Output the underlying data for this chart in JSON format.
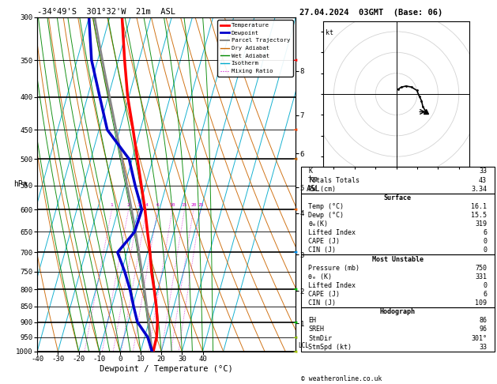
{
  "title_left": "-34°49'S  301°32'W  21m  ASL",
  "title_right": "27.04.2024  03GMT  (Base: 06)",
  "xlabel": "Dewpoint / Temperature (°C)",
  "pressure_levels": [
    300,
    350,
    400,
    450,
    500,
    550,
    600,
    650,
    700,
    750,
    800,
    850,
    900,
    950,
    1000
  ],
  "temp_profile_p": [
    1000,
    950,
    900,
    850,
    800,
    750,
    700,
    650,
    600,
    550,
    500,
    450,
    400,
    350,
    300
  ],
  "temp_profile_t": [
    16.1,
    15.8,
    14.2,
    11.5,
    8.2,
    4.5,
    1.2,
    -2.8,
    -7.0,
    -12.0,
    -17.5,
    -23.5,
    -30.5,
    -37.0,
    -44.0
  ],
  "dewp_profile_p": [
    1000,
    950,
    900,
    850,
    800,
    750,
    700,
    650,
    600,
    550,
    500,
    450,
    400,
    350,
    300
  ],
  "dewp_profile_t": [
    15.5,
    11.5,
    4.5,
    0.5,
    -3.5,
    -8.5,
    -14.5,
    -9.0,
    -8.5,
    -15.0,
    -21.5,
    -36.0,
    -44.0,
    -53.0,
    -60.0
  ],
  "color_temp": "#ff0000",
  "color_dewp": "#0000cc",
  "color_parcel": "#888888",
  "color_dry_adiabat": "#cc6600",
  "color_wet_adiabat": "#008800",
  "color_isotherm": "#00aacc",
  "color_mixing": "#cc00cc",
  "color_background": "#ffffff",
  "mixing_ratios": [
    1,
    2,
    3,
    4,
    6,
    10,
    15,
    20,
    25
  ],
  "skew_deg": 45,
  "T_min": -40,
  "T_max": 40,
  "P_min": 300,
  "P_max": 1000,
  "km_ticks": [
    1,
    2,
    3,
    4,
    5,
    6,
    7,
    8
  ],
  "km_pressures": [
    904,
    804,
    706,
    608,
    554,
    490,
    427,
    364
  ],
  "stats": {
    "K": 33,
    "TotTot": 43,
    "PW": "3.34",
    "surf_temp": "16.1",
    "surf_dewp": "15.5",
    "surf_theta_e": "319",
    "surf_li": "6",
    "surf_cape": "0",
    "surf_cin": "0",
    "mu_pressure": "750",
    "mu_theta_e": "331",
    "mu_li": "0",
    "mu_cape": "6",
    "mu_cin": "109",
    "hodo_eh": "86",
    "hodo_sreh": "96",
    "hodo_stmdir": "301°",
    "hodo_stmspd": "33"
  }
}
